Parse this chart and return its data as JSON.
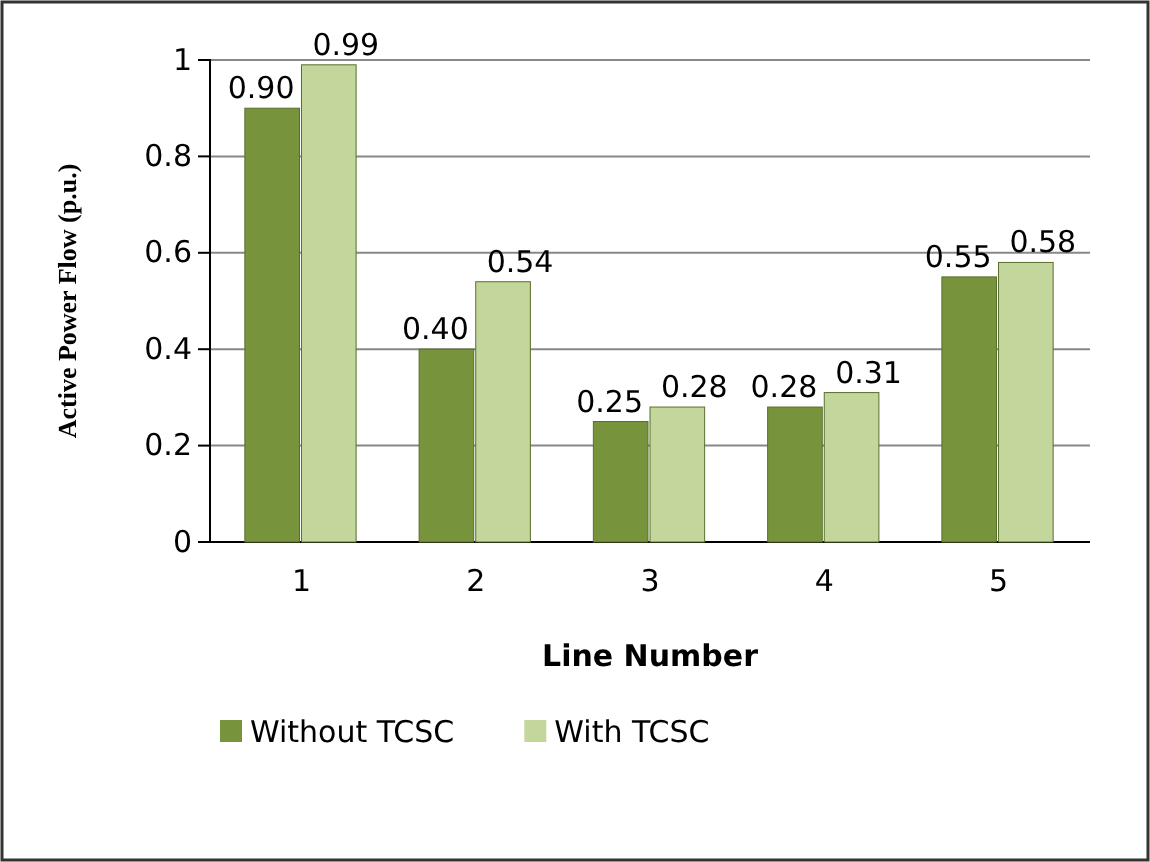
{
  "chart_data": {
    "type": "bar",
    "xlabel": "Line Number",
    "ylabel": "Active Power Flow (p.u.)",
    "categories": [
      "1",
      "2",
      "3",
      "4",
      "5"
    ],
    "series": [
      {
        "name": "Without TCSC",
        "color": "#77933c",
        "values": [
          0.9,
          0.4,
          0.25,
          0.28,
          0.55
        ],
        "value_labels": [
          "0.90",
          "0.40",
          "0.25",
          "0.28",
          "0.55"
        ]
      },
      {
        "name": "With TCSC",
        "color": "#c3d69b",
        "values": [
          0.99,
          0.54,
          0.28,
          0.31,
          0.58
        ],
        "value_labels": [
          "0.99",
          "0.54",
          "0.28",
          "0.31",
          "0.58"
        ]
      }
    ],
    "ylim": [
      0,
      1
    ],
    "yticks": [
      0,
      0.2,
      0.4,
      0.6,
      0.8,
      1
    ],
    "grid": "y",
    "legend": "bottom"
  }
}
